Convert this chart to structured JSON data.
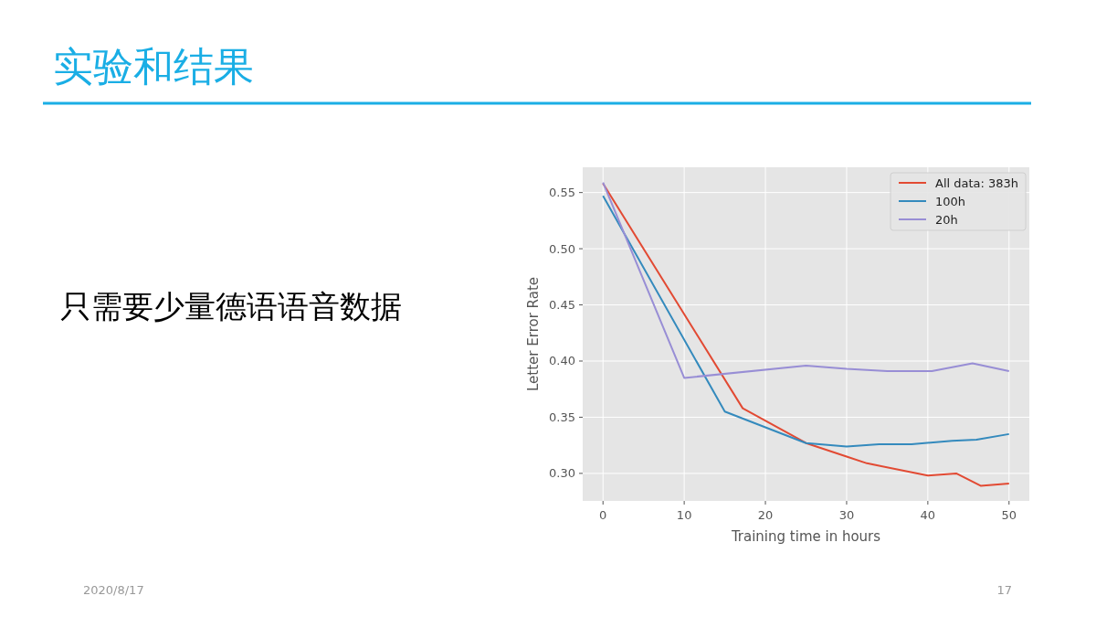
{
  "chart_data": {
    "type": "line",
    "title": "实验和结果",
    "subtitle": "只需要少量德语语音数据",
    "xlabel": "Training time in hours",
    "ylabel": "Letter Error Rate",
    "xlim": [
      -2.5,
      52.5
    ],
    "ylim": [
      0.2755,
      0.5725
    ],
    "xticks": [
      0,
      10,
      20,
      30,
      40,
      50
    ],
    "yticks": [
      {
        "value": 0.3,
        "label": "0.30"
      },
      0.35,
      {
        "value": 0.4,
        "label": "0.40"
      },
      0.45,
      {
        "value": 0.5,
        "label": "0.50"
      },
      0.55
    ],
    "grid": true,
    "legend": "top right",
    "annotations": [
      "2020/8/17",
      "17"
    ],
    "series": [
      {
        "name": "All data: 383h",
        "color": "#e24a33",
        "x": [
          0,
          17.2,
          25,
          30,
          32.5,
          40,
          43.5,
          46.5,
          50
        ],
        "values": [
          0.558,
          0.358,
          0.327,
          0.315,
          0.309,
          0.298,
          0.3,
          0.289,
          0.291
        ]
      },
      {
        "name": "100h",
        "color": "#348abd",
        "x": [
          0,
          15,
          25,
          30,
          34,
          38,
          43,
          46,
          50
        ],
        "values": [
          0.547,
          0.355,
          0.327,
          0.324,
          0.326,
          0.326,
          0.329,
          0.33,
          0.335
        ]
      },
      {
        "name": "20h",
        "color": "#988ed5",
        "x": [
          0,
          10,
          25,
          30,
          35,
          40.5,
          45.5,
          50
        ],
        "values": [
          0.559,
          0.385,
          0.396,
          0.393,
          0.391,
          0.391,
          0.398,
          0.391
        ]
      }
    ]
  }
}
